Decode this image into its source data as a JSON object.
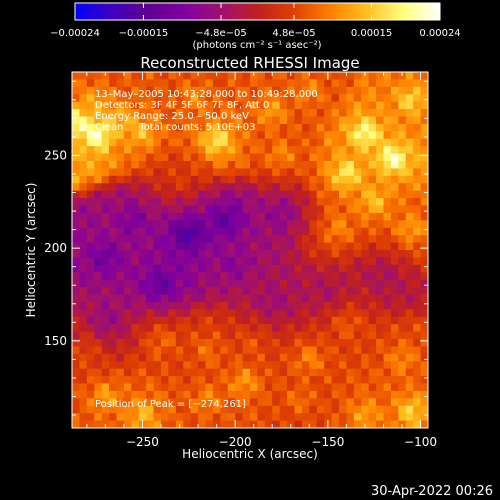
{
  "chart_data": {
    "type": "heatmap",
    "title": "Reconstructed RHESSI Image",
    "xlabel": "Heliocentric X (arcsec)",
    "ylabel": "Heliocentric Y (arcsec)",
    "xlim": [
      -288,
      -96
    ],
    "ylim": [
      103,
      295
    ],
    "x_ticks": [
      -250,
      -200,
      -150,
      -100
    ],
    "x_tick_labels": [
      "−250",
      "−200",
      "−150",
      "−100"
    ],
    "y_ticks": [
      150,
      200,
      250
    ],
    "y_tick_labels": [
      "150",
      "200",
      "250"
    ],
    "colorbar": {
      "min": -0.00024,
      "max": 0.00024,
      "ticks": [
        -0.00024,
        -0.00015,
        -4.8e-05,
        4.8e-05,
        0.00015,
        0.00024
      ],
      "tick_labels": [
        "−0.00024",
        "−0.00015",
        "−4.8e−05",
        "4.8e−05",
        "0.00015",
        "0.00024"
      ],
      "units": "(photons cm⁻² s⁻¹ asec⁻²)",
      "colormap": [
        "#0000ff",
        "#4000c0",
        "#600090",
        "#8000a0",
        "#a01070",
        "#c02020",
        "#e04000",
        "#ff8000",
        "#ffc020",
        "#ffff80",
        "#ffffff"
      ]
    },
    "annotations": [
      "13–May–2005 10:43:28.000 to 10:49:28.000",
      "Detectors: 3F 4F 5F 6F 7F 8F, Att 0",
      "Energy Range: 25.0 – 50.0 keV",
      "Clean     Total counts: 5.10E+03"
    ],
    "peak_label": "Position of Peak = [−274,261]",
    "peak": [
      -274,
      261
    ],
    "grid": false,
    "pixel_size_arcsec": 4,
    "values": [
      {
        "x": -274,
        "y": 261,
        "v": 0.00024
      },
      {
        "x": -286,
        "y": 268,
        "v": 0.0002
      },
      {
        "x": -262,
        "y": 270,
        "v": 0.00012
      },
      {
        "x": -250,
        "y": 262,
        "v": 0.00014
      },
      {
        "x": -275,
        "y": 280,
        "v": 0.0001
      },
      {
        "x": -210,
        "y": 258,
        "v": 0.00018
      },
      {
        "x": -222,
        "y": 282,
        "v": 0.0001
      },
      {
        "x": -180,
        "y": 274,
        "v": 0.00012
      },
      {
        "x": -160,
        "y": 285,
        "v": 0.0001
      },
      {
        "x": -130,
        "y": 262,
        "v": 0.0002
      },
      {
        "x": -115,
        "y": 248,
        "v": 0.00022
      },
      {
        "x": -140,
        "y": 240,
        "v": 0.00018
      },
      {
        "x": -105,
        "y": 280,
        "v": 0.00016
      },
      {
        "x": -125,
        "y": 225,
        "v": 0.00014
      },
      {
        "x": -105,
        "y": 210,
        "v": 0.00012
      },
      {
        "x": -145,
        "y": 210,
        "v": 0.0001
      },
      {
        "x": -175,
        "y": 250,
        "v": 0.0001
      },
      {
        "x": -230,
        "y": 236,
        "v": 4e-05
      },
      {
        "x": -255,
        "y": 215,
        "v": -0.0001
      },
      {
        "x": -225,
        "y": 208,
        "v": -0.00018
      },
      {
        "x": -205,
        "y": 215,
        "v": -0.00014
      },
      {
        "x": -175,
        "y": 218,
        "v": -8e-05
      },
      {
        "x": -270,
        "y": 195,
        "v": -0.00012
      },
      {
        "x": -240,
        "y": 180,
        "v": -0.00014
      },
      {
        "x": -200,
        "y": 190,
        "v": -8e-05
      },
      {
        "x": -270,
        "y": 160,
        "v": -8e-05
      },
      {
        "x": -180,
        "y": 170,
        "v": -6e-05
      },
      {
        "x": -150,
        "y": 175,
        "v": -5e-05
      },
      {
        "x": -120,
        "y": 185,
        "v": -4e-05
      },
      {
        "x": -240,
        "y": 150,
        "v": 8e-05
      },
      {
        "x": -215,
        "y": 145,
        "v": 8e-05
      },
      {
        "x": -190,
        "y": 150,
        "v": 6e-05
      },
      {
        "x": -160,
        "y": 140,
        "v": 0.0001
      },
      {
        "x": -140,
        "y": 160,
        "v": 8e-05
      },
      {
        "x": -110,
        "y": 140,
        "v": 0.0001
      },
      {
        "x": -280,
        "y": 145,
        "v": 6e-05
      },
      {
        "x": -270,
        "y": 120,
        "v": 0.00012
      },
      {
        "x": -250,
        "y": 110,
        "v": 0.00014
      },
      {
        "x": -215,
        "y": 118,
        "v": 0.0001
      },
      {
        "x": -195,
        "y": 128,
        "v": 0.00012
      },
      {
        "x": -165,
        "y": 118,
        "v": 8e-05
      },
      {
        "x": -130,
        "y": 110,
        "v": 0.00012
      },
      {
        "x": -105,
        "y": 112,
        "v": 0.00016
      }
    ]
  },
  "footer": {
    "timestamp": "30-Apr-2022 00:26"
  }
}
